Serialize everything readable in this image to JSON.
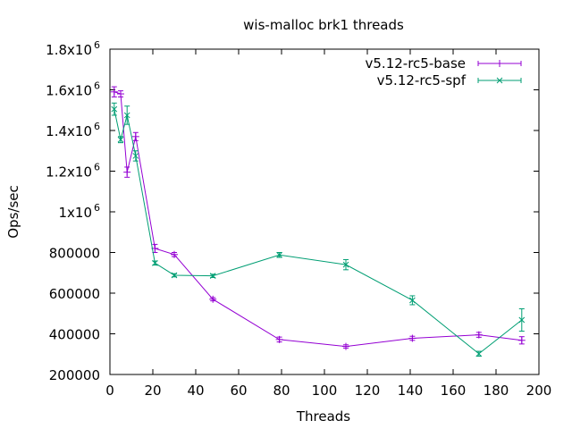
{
  "chart_data": {
    "type": "line",
    "title": "wis-malloc brk1 threads",
    "xlabel": "Threads",
    "ylabel": "Ops/sec",
    "xlim": [
      0,
      200
    ],
    "ylim": [
      200000,
      1800000
    ],
    "x_ticks": [
      0,
      20,
      40,
      60,
      80,
      100,
      120,
      140,
      160,
      180,
      200
    ],
    "y_ticks": [
      {
        "value": 200000,
        "label": "200000",
        "sup": ""
      },
      {
        "value": 400000,
        "label": "400000",
        "sup": ""
      },
      {
        "value": 600000,
        "label": "600000",
        "sup": ""
      },
      {
        "value": 800000,
        "label": "800000",
        "sup": ""
      },
      {
        "value": 1000000,
        "label": "1x10",
        "sup": "6"
      },
      {
        "value": 1200000,
        "label": "1.2x10",
        "sup": "6"
      },
      {
        "value": 1400000,
        "label": "1.4x10",
        "sup": "6"
      },
      {
        "value": 1600000,
        "label": "1.6x10",
        "sup": "6"
      },
      {
        "value": 1800000,
        "label": "1.8x10",
        "sup": "6"
      }
    ],
    "grid": false,
    "legend_position": "top-right",
    "series": [
      {
        "name": "v5.12-rc5-base",
        "color": "#9400d3",
        "marker": "plus",
        "x": [
          2,
          5,
          8,
          12,
          21,
          30,
          48,
          79,
          110,
          141,
          172,
          192
        ],
        "y": [
          1590000,
          1580000,
          1195000,
          1370000,
          820000,
          790000,
          570000,
          372000,
          338000,
          378000,
          395000,
          368000
        ],
        "err": [
          25000,
          15000,
          25000,
          20000,
          20000,
          10000,
          8000,
          12000,
          8000,
          10000,
          12000,
          18000
        ]
      },
      {
        "name": "v5.12-rc5-spf",
        "color": "#009e73",
        "marker": "x",
        "x": [
          2,
          5,
          8,
          12,
          21,
          30,
          48,
          79,
          110,
          141,
          172,
          192
        ],
        "y": [
          1505000,
          1355000,
          1475000,
          1275000,
          748000,
          688000,
          685000,
          788000,
          740000,
          565000,
          302000,
          468000
        ],
        "err": [
          30000,
          15000,
          45000,
          25000,
          10000,
          8000,
          8000,
          12000,
          25000,
          22000,
          12000,
          55000
        ]
      }
    ]
  }
}
